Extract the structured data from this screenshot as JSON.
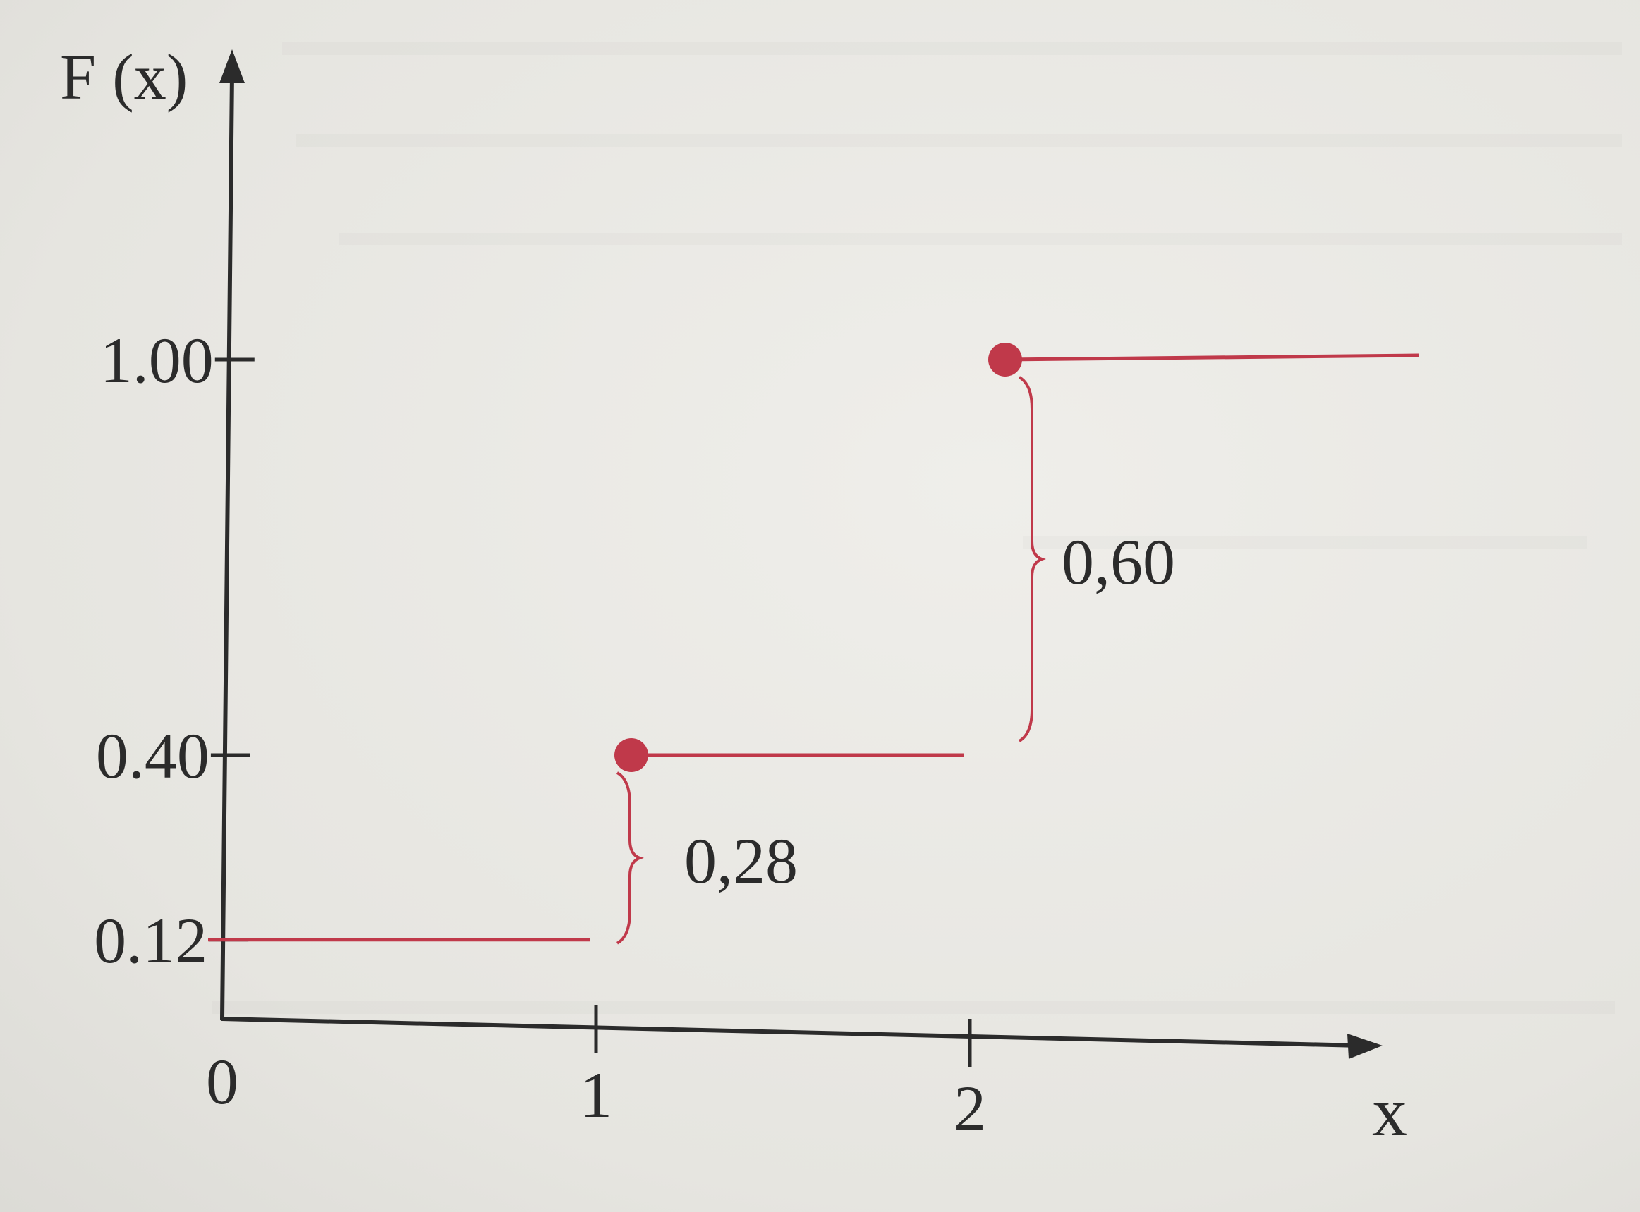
{
  "chart_data": {
    "type": "line",
    "subtype": "step",
    "ylabel": "F (x)",
    "xlabel": "x",
    "x_ticks": [
      "0",
      "1",
      "2"
    ],
    "y_ticks": [
      "1.00",
      "0.40",
      "0.12"
    ],
    "xlim": [
      0,
      3.5
    ],
    "ylim": [
      0,
      1.15
    ],
    "grid": false,
    "legend": "none",
    "series": [
      {
        "color": "#c0394a",
        "segments": [
          {
            "x_start": 0,
            "x_end": 1,
            "y": 0.12,
            "closed_start": false
          },
          {
            "x_start": 1,
            "x_end": 2,
            "y": 0.4,
            "closed_start": true
          },
          {
            "x_start": 2,
            "x_end": 3.2,
            "y": 1.0,
            "closed_start": true
          }
        ]
      }
    ],
    "annotations": [
      {
        "text": "0,28",
        "x": 1,
        "y_from": 0.12,
        "y_to": 0.4
      },
      {
        "text": "0,60",
        "x": 2,
        "y_from": 0.4,
        "y_to": 1.0
      }
    ],
    "colors": {
      "axis": "#2b2b2b",
      "series": "#c0394a",
      "brace": "#c0394a"
    }
  }
}
